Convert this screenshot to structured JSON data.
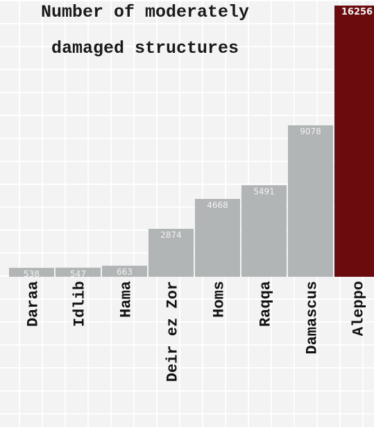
{
  "chart_data": {
    "type": "bar",
    "title": [
      "Number of moderately",
      "damaged structures"
    ],
    "categories": [
      "Daraa",
      "Idlib",
      "Hama",
      "Deir ez Zor",
      "Homs",
      "Raqqa",
      "Damascus",
      "Aleppo"
    ],
    "values": [
      538,
      547,
      663,
      2874,
      4668,
      5491,
      9078,
      16256
    ],
    "ylim": [
      0,
      16256
    ],
    "grid": true,
    "legend": "none",
    "colors": {
      "bar": "#b2b5b6",
      "highlight": "#6b0b0e",
      "value_label": "#f2f2f2",
      "category_label": "#111111"
    }
  }
}
